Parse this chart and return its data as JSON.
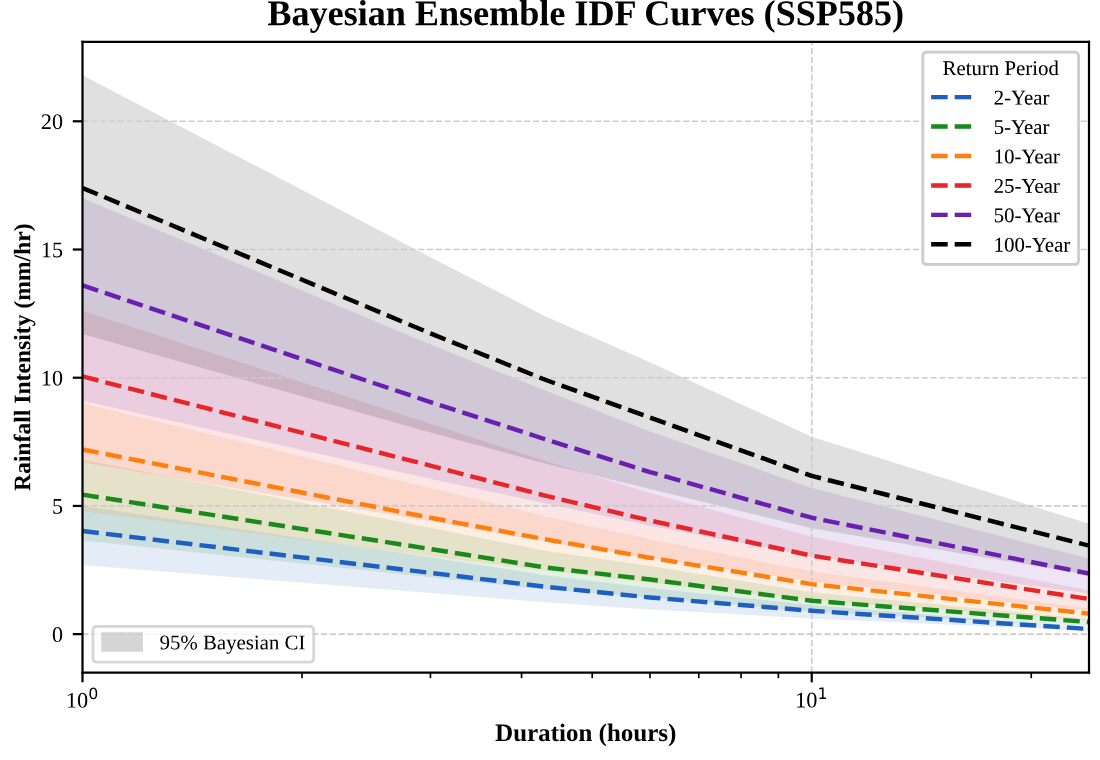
{
  "chart_data": {
    "type": "line",
    "title": "Bayesian Ensemble IDF Curves (SSP585)",
    "xlabel": "Duration (hours)",
    "ylabel": "Rainfall Intensity (mm/hr)",
    "legend_title": "Return Period",
    "x": [
      1,
      3,
      4.31,
      6,
      10,
      24
    ],
    "series": [
      {
        "name": "2-Year",
        "color": "#1f5fc4",
        "values": [
          4.02,
          2.39,
          1.85,
          1.43,
          0.91,
          0.2
        ],
        "lower": [
          2.7,
          1.6,
          1.24,
          0.96,
          0.61,
          0.13
        ],
        "upper": [
          5.0,
          3.0,
          2.3,
          1.8,
          1.14,
          0.25
        ]
      },
      {
        "name": "5-Year",
        "color": "#1a8a1a",
        "values": [
          5.44,
          3.32,
          2.6,
          2.13,
          1.3,
          0.47
        ],
        "lower": [
          3.65,
          2.22,
          1.74,
          1.43,
          0.87,
          0.31
        ],
        "upper": [
          6.8,
          4.15,
          3.25,
          2.66,
          1.63,
          0.59
        ]
      },
      {
        "name": "10-Year",
        "color": "#ff7f0e",
        "values": [
          7.2,
          4.54,
          3.7,
          2.98,
          1.95,
          0.8
        ],
        "lower": [
          4.8,
          3.04,
          2.48,
          2.0,
          1.31,
          0.54
        ],
        "upper": [
          9.0,
          5.7,
          4.6,
          3.7,
          2.44,
          1.0
        ]
      },
      {
        "name": "25-Year",
        "color": "#e8262a",
        "values": [
          10.05,
          6.57,
          5.4,
          4.43,
          3.06,
          1.37
        ],
        "lower": [
          6.7,
          4.4,
          3.6,
          2.97,
          2.05,
          0.92
        ],
        "upper": [
          12.6,
          8.2,
          6.75,
          5.5,
          3.8,
          1.7
        ]
      },
      {
        "name": "50-Year",
        "color": "#6a1fb0",
        "values": [
          13.6,
          9.05,
          7.6,
          6.32,
          4.54,
          2.36
        ],
        "lower": [
          9.1,
          6.06,
          5.1,
          4.23,
          3.04,
          1.58
        ],
        "upper": [
          17.0,
          11.3,
          9.5,
          7.9,
          5.7,
          2.95
        ]
      },
      {
        "name": "100-Year",
        "color": "#000000",
        "values": [
          17.4,
          11.73,
          9.92,
          8.45,
          6.17,
          3.45
        ],
        "lower": [
          11.7,
          7.86,
          6.65,
          5.66,
          4.13,
          2.31
        ],
        "upper": [
          21.8,
          14.7,
          12.4,
          10.6,
          7.7,
          4.3
        ]
      }
    ],
    "xlim": [
      1,
      24
    ],
    "ylim": [
      -1.5,
      23.1
    ],
    "log": "x",
    "xticks": [
      {
        "value": 1,
        "label": "10$^{0}$"
      },
      {
        "value": 10,
        "label": "10$^{1}$"
      }
    ],
    "yticks": [
      0,
      5,
      10,
      15,
      20
    ],
    "grid": true,
    "legend": "top right",
    "line_style": "dashed",
    "marker": "none",
    "annotations": [
      "95% Bayesian CI"
    ]
  }
}
